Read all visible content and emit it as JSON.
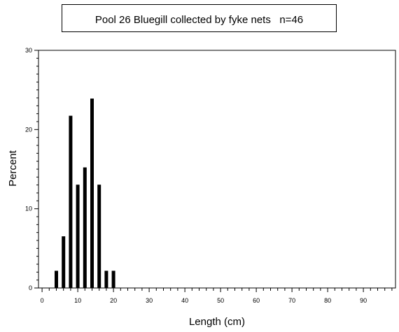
{
  "chart_data": {
    "type": "bar",
    "title": "Pool 26 Bluegill collected by fyke nets",
    "annotation": "n=46",
    "xlabel": "Length (cm)",
    "ylabel": "Percent",
    "xlim": [
      -1,
      99
    ],
    "ylim": [
      0,
      30
    ],
    "x_ticks": [
      0,
      10,
      20,
      30,
      40,
      50,
      60,
      70,
      80,
      90
    ],
    "y_ticks": [
      0,
      10,
      20,
      30
    ],
    "x": [
      4,
      6,
      8,
      10,
      12,
      14,
      16,
      18,
      20
    ],
    "values": [
      2.17,
      6.52,
      21.74,
      13.04,
      15.22,
      23.91,
      13.04,
      2.17,
      2.17
    ],
    "grid": false,
    "legend": "none"
  }
}
